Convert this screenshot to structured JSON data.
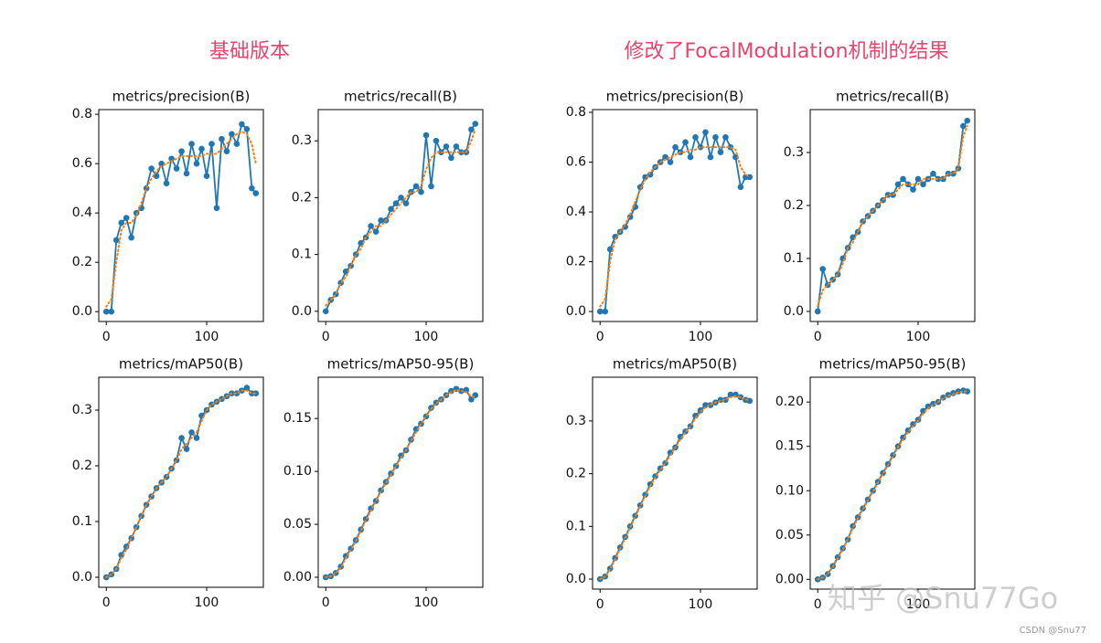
{
  "headings": [
    "基础版本",
    "修改了FocalModulation机制的结果"
  ],
  "watermark": "知乎 @Snu77Go",
  "credit": "CSDN @Snu77",
  "chart_data": [
    {
      "type": "line",
      "title": "metrics/precision(B)",
      "x": [
        0,
        5,
        10,
        15,
        20,
        25,
        30,
        35,
        40,
        45,
        50,
        55,
        60,
        65,
        70,
        75,
        80,
        85,
        90,
        95,
        100,
        105,
        110,
        115,
        120,
        125,
        130,
        135,
        140,
        145,
        149
      ],
      "series": [
        {
          "color": "#1f77b4",
          "markers": true,
          "line_style": "solid",
          "values": [
            0.0,
            0.0,
            0.29,
            0.36,
            0.38,
            0.3,
            0.4,
            0.42,
            0.5,
            0.58,
            0.55,
            0.6,
            0.52,
            0.62,
            0.58,
            0.65,
            0.56,
            0.68,
            0.6,
            0.66,
            0.55,
            0.68,
            0.42,
            0.7,
            0.65,
            0.72,
            0.68,
            0.76,
            0.74,
            0.5,
            0.48
          ]
        },
        {
          "color": "#ff7f0e",
          "markers": false,
          "line_style": "dotted",
          "values": [
            0.02,
            0.05,
            0.2,
            0.33,
            0.36,
            0.36,
            0.39,
            0.44,
            0.5,
            0.54,
            0.57,
            0.59,
            0.6,
            0.61,
            0.62,
            0.63,
            0.63,
            0.63,
            0.63,
            0.63,
            0.64,
            0.64,
            0.64,
            0.66,
            0.68,
            0.7,
            0.72,
            0.73,
            0.72,
            0.68,
            0.6
          ]
        }
      ],
      "xlim": [
        -7.5,
        156.5
      ],
      "xticks": [
        0,
        100
      ],
      "ylim": [
        -0.04,
        0.819
      ],
      "yticks": [
        {
          "value": 0,
          "label": "0.0"
        },
        0.2,
        0.4,
        0.6,
        0.8
      ]
    },
    {
      "type": "line",
      "title": "metrics/recall(B)",
      "x": [
        0,
        5,
        10,
        15,
        20,
        25,
        30,
        35,
        40,
        45,
        50,
        55,
        60,
        65,
        70,
        75,
        80,
        85,
        90,
        95,
        100,
        105,
        110,
        115,
        120,
        125,
        130,
        135,
        140,
        145,
        149
      ],
      "series": [
        {
          "color": "#1f77b4",
          "markers": true,
          "line_style": "solid",
          "values": [
            0.0,
            0.02,
            0.03,
            0.05,
            0.07,
            0.08,
            0.1,
            0.12,
            0.13,
            0.15,
            0.14,
            0.16,
            0.16,
            0.18,
            0.19,
            0.2,
            0.19,
            0.21,
            0.22,
            0.21,
            0.31,
            0.22,
            0.3,
            0.28,
            0.29,
            0.27,
            0.29,
            0.28,
            0.28,
            0.32,
            0.33
          ]
        },
        {
          "color": "#ff7f0e",
          "markers": false,
          "line_style": "dotted",
          "values": [
            0.01,
            0.02,
            0.03,
            0.05,
            0.06,
            0.08,
            0.1,
            0.11,
            0.13,
            0.14,
            0.15,
            0.15,
            0.16,
            0.17,
            0.18,
            0.19,
            0.2,
            0.21,
            0.21,
            0.22,
            0.25,
            0.27,
            0.28,
            0.28,
            0.28,
            0.28,
            0.28,
            0.28,
            0.28,
            0.3,
            0.32
          ]
        }
      ],
      "xlim": [
        -7.5,
        156.5
      ],
      "xticks": [
        0,
        100
      ],
      "ylim": [
        -0.018,
        0.355
      ],
      "yticks": [
        {
          "value": 0,
          "label": "0.0"
        },
        0.1,
        0.2,
        0.3
      ]
    },
    {
      "type": "line",
      "title": "metrics/mAP50(B)",
      "x": [
        0,
        5,
        10,
        15,
        20,
        25,
        30,
        35,
        40,
        45,
        50,
        55,
        60,
        65,
        70,
        75,
        80,
        85,
        90,
        95,
        100,
        105,
        110,
        115,
        120,
        125,
        130,
        135,
        140,
        145,
        149
      ],
      "series": [
        {
          "color": "#1f77b4",
          "markers": true,
          "line_style": "solid",
          "values": [
            0.0,
            0.005,
            0.015,
            0.04,
            0.055,
            0.07,
            0.09,
            0.11,
            0.13,
            0.145,
            0.16,
            0.17,
            0.18,
            0.195,
            0.21,
            0.25,
            0.23,
            0.26,
            0.25,
            0.29,
            0.3,
            0.31,
            0.315,
            0.32,
            0.325,
            0.33,
            0.33,
            0.335,
            0.34,
            0.33,
            0.33
          ]
        },
        {
          "color": "#ff7f0e",
          "markers": false,
          "line_style": "dotted",
          "values": [
            0.0,
            0.005,
            0.015,
            0.035,
            0.05,
            0.07,
            0.09,
            0.11,
            0.13,
            0.145,
            0.16,
            0.17,
            0.18,
            0.195,
            0.21,
            0.23,
            0.24,
            0.25,
            0.26,
            0.28,
            0.3,
            0.31,
            0.315,
            0.32,
            0.325,
            0.33,
            0.33,
            0.335,
            0.335,
            0.33,
            0.33
          ]
        }
      ],
      "xlim": [
        -7.5,
        156.5
      ],
      "xticks": [
        0,
        100
      ],
      "ylim": [
        -0.018,
        0.359
      ],
      "yticks": [
        {
          "value": 0,
          "label": "0.0"
        },
        0.1,
        0.2,
        0.3
      ]
    },
    {
      "type": "line",
      "title": "metrics/mAP50-95(B)",
      "x": [
        0,
        5,
        10,
        15,
        20,
        25,
        30,
        35,
        40,
        45,
        50,
        55,
        60,
        65,
        70,
        75,
        80,
        85,
        90,
        95,
        100,
        105,
        110,
        115,
        120,
        125,
        130,
        135,
        140,
        145,
        149
      ],
      "series": [
        {
          "color": "#1f77b4",
          "markers": true,
          "line_style": "solid",
          "values": [
            0.0,
            0.001,
            0.004,
            0.01,
            0.02,
            0.027,
            0.035,
            0.045,
            0.055,
            0.065,
            0.072,
            0.082,
            0.09,
            0.098,
            0.105,
            0.115,
            0.12,
            0.13,
            0.14,
            0.145,
            0.152,
            0.16,
            0.165,
            0.168,
            0.172,
            0.176,
            0.178,
            0.176,
            0.177,
            0.168,
            0.172
          ]
        },
        {
          "color": "#ff7f0e",
          "markers": false,
          "line_style": "dotted",
          "values": [
            0.0,
            0.001,
            0.004,
            0.009,
            0.018,
            0.026,
            0.034,
            0.044,
            0.054,
            0.063,
            0.072,
            0.081,
            0.089,
            0.097,
            0.105,
            0.113,
            0.12,
            0.129,
            0.137,
            0.145,
            0.152,
            0.159,
            0.164,
            0.168,
            0.172,
            0.175,
            0.177,
            0.176,
            0.175,
            0.171,
            0.17
          ]
        }
      ],
      "xlim": [
        -7.5,
        156.5
      ],
      "xticks": [
        0,
        100
      ],
      "ylim": [
        -0.0095,
        0.189
      ],
      "yticks": [
        {
          "value": 0,
          "label": "0.00"
        },
        0.05,
        {
          "value": 0.1,
          "label": "0.10"
        },
        0.15
      ]
    },
    {
      "type": "line",
      "title": "metrics/precision(B)",
      "x": [
        0,
        5,
        10,
        15,
        20,
        25,
        30,
        35,
        40,
        45,
        50,
        55,
        60,
        65,
        70,
        75,
        80,
        85,
        90,
        95,
        100,
        105,
        110,
        115,
        120,
        125,
        130,
        135,
        140,
        145,
        149
      ],
      "series": [
        {
          "color": "#1f77b4",
          "markers": true,
          "line_style": "solid",
          "values": [
            0.0,
            0.0,
            0.25,
            0.3,
            0.32,
            0.34,
            0.38,
            0.42,
            0.5,
            0.54,
            0.55,
            0.58,
            0.6,
            0.62,
            0.6,
            0.66,
            0.64,
            0.68,
            0.62,
            0.7,
            0.66,
            0.72,
            0.62,
            0.7,
            0.64,
            0.7,
            0.66,
            0.62,
            0.5,
            0.54,
            0.54
          ]
        },
        {
          "color": "#ff7f0e",
          "markers": false,
          "line_style": "dotted",
          "values": [
            0.02,
            0.05,
            0.2,
            0.29,
            0.32,
            0.35,
            0.39,
            0.44,
            0.49,
            0.53,
            0.56,
            0.58,
            0.6,
            0.61,
            0.62,
            0.63,
            0.64,
            0.64,
            0.65,
            0.65,
            0.66,
            0.66,
            0.66,
            0.66,
            0.66,
            0.66,
            0.66,
            0.65,
            0.58,
            0.55,
            0.54
          ]
        }
      ],
      "xlim": [
        -7.5,
        156.5
      ],
      "xticks": [
        0,
        100
      ],
      "ylim": [
        -0.04,
        0.811
      ],
      "yticks": [
        {
          "value": 0,
          "label": "0.0"
        },
        0.2,
        0.4,
        0.6,
        0.8
      ]
    },
    {
      "type": "line",
      "title": "metrics/recall(B)",
      "x": [
        0,
        5,
        10,
        15,
        20,
        25,
        30,
        35,
        40,
        45,
        50,
        55,
        60,
        65,
        70,
        75,
        80,
        85,
        90,
        95,
        100,
        105,
        110,
        115,
        120,
        125,
        130,
        135,
        140,
        145,
        149
      ],
      "series": [
        {
          "color": "#1f77b4",
          "markers": true,
          "line_style": "solid",
          "values": [
            0.0,
            0.08,
            0.05,
            0.06,
            0.07,
            0.1,
            0.12,
            0.14,
            0.15,
            0.17,
            0.18,
            0.19,
            0.2,
            0.21,
            0.22,
            0.22,
            0.24,
            0.25,
            0.24,
            0.23,
            0.25,
            0.24,
            0.25,
            0.26,
            0.25,
            0.25,
            0.26,
            0.26,
            0.27,
            0.35,
            0.36
          ]
        },
        {
          "color": "#ff7f0e",
          "markers": false,
          "line_style": "dotted",
          "values": [
            0.01,
            0.04,
            0.05,
            0.06,
            0.07,
            0.09,
            0.12,
            0.13,
            0.15,
            0.17,
            0.18,
            0.19,
            0.2,
            0.21,
            0.22,
            0.22,
            0.23,
            0.24,
            0.24,
            0.24,
            0.24,
            0.25,
            0.25,
            0.25,
            0.25,
            0.25,
            0.26,
            0.26,
            0.27,
            0.33,
            0.35
          ]
        }
      ],
      "xlim": [
        -7.5,
        156.5
      ],
      "xticks": [
        0,
        100
      ],
      "ylim": [
        -0.019,
        0.381
      ],
      "yticks": [
        {
          "value": 0,
          "label": "0.0"
        },
        0.1,
        0.2,
        0.3
      ]
    },
    {
      "type": "line",
      "title": "metrics/mAP50(B)",
      "x": [
        0,
        5,
        10,
        15,
        20,
        25,
        30,
        35,
        40,
        45,
        50,
        55,
        60,
        65,
        70,
        75,
        80,
        85,
        90,
        95,
        100,
        105,
        110,
        115,
        120,
        125,
        130,
        135,
        140,
        145,
        149
      ],
      "series": [
        {
          "color": "#1f77b4",
          "markers": true,
          "line_style": "solid",
          "values": [
            0.0,
            0.005,
            0.02,
            0.04,
            0.06,
            0.08,
            0.1,
            0.12,
            0.14,
            0.16,
            0.18,
            0.195,
            0.21,
            0.22,
            0.24,
            0.25,
            0.27,
            0.28,
            0.29,
            0.31,
            0.32,
            0.33,
            0.33,
            0.335,
            0.34,
            0.34,
            0.35,
            0.35,
            0.345,
            0.34,
            0.338
          ]
        },
        {
          "color": "#ff7f0e",
          "markers": false,
          "line_style": "dotted",
          "values": [
            0.0,
            0.005,
            0.018,
            0.038,
            0.058,
            0.078,
            0.098,
            0.118,
            0.138,
            0.158,
            0.177,
            0.193,
            0.207,
            0.22,
            0.235,
            0.25,
            0.265,
            0.278,
            0.29,
            0.305,
            0.317,
            0.326,
            0.331,
            0.335,
            0.338,
            0.341,
            0.345,
            0.347,
            0.345,
            0.341,
            0.339
          ]
        }
      ],
      "xlim": [
        -7.5,
        156.5
      ],
      "xticks": [
        0,
        100
      ],
      "ylim": [
        -0.019,
        0.383
      ],
      "yticks": [
        {
          "value": 0,
          "label": "0.0"
        },
        0.1,
        0.2,
        0.3
      ]
    },
    {
      "type": "line",
      "title": "metrics/mAP50-95(B)",
      "x": [
        0,
        5,
        10,
        15,
        20,
        25,
        30,
        35,
        40,
        45,
        50,
        55,
        60,
        65,
        70,
        75,
        80,
        85,
        90,
        95,
        100,
        105,
        110,
        115,
        120,
        125,
        130,
        135,
        140,
        145,
        149
      ],
      "series": [
        {
          "color": "#1f77b4",
          "markers": true,
          "line_style": "solid",
          "values": [
            0.0,
            0.002,
            0.006,
            0.015,
            0.025,
            0.035,
            0.045,
            0.06,
            0.07,
            0.08,
            0.09,
            0.1,
            0.11,
            0.12,
            0.13,
            0.14,
            0.15,
            0.16,
            0.168,
            0.175,
            0.18,
            0.19,
            0.195,
            0.198,
            0.2,
            0.205,
            0.208,
            0.21,
            0.212,
            0.213,
            0.212
          ]
        },
        {
          "color": "#ff7f0e",
          "markers": false,
          "line_style": "dotted",
          "values": [
            0.0,
            0.002,
            0.006,
            0.014,
            0.024,
            0.034,
            0.045,
            0.058,
            0.069,
            0.079,
            0.089,
            0.099,
            0.109,
            0.119,
            0.129,
            0.139,
            0.149,
            0.158,
            0.166,
            0.173,
            0.179,
            0.187,
            0.193,
            0.197,
            0.2,
            0.204,
            0.207,
            0.209,
            0.211,
            0.212,
            0.212
          ]
        }
      ],
      "xlim": [
        -7.5,
        156.5
      ],
      "xticks": [
        0,
        100
      ],
      "ylim": [
        -0.011,
        0.228
      ],
      "yticks": [
        {
          "value": 0,
          "label": "0.00"
        },
        0.05,
        {
          "value": 0.1,
          "label": "0.10"
        },
        0.15,
        {
          "value": 0.2,
          "label": "0.20"
        }
      ]
    }
  ]
}
